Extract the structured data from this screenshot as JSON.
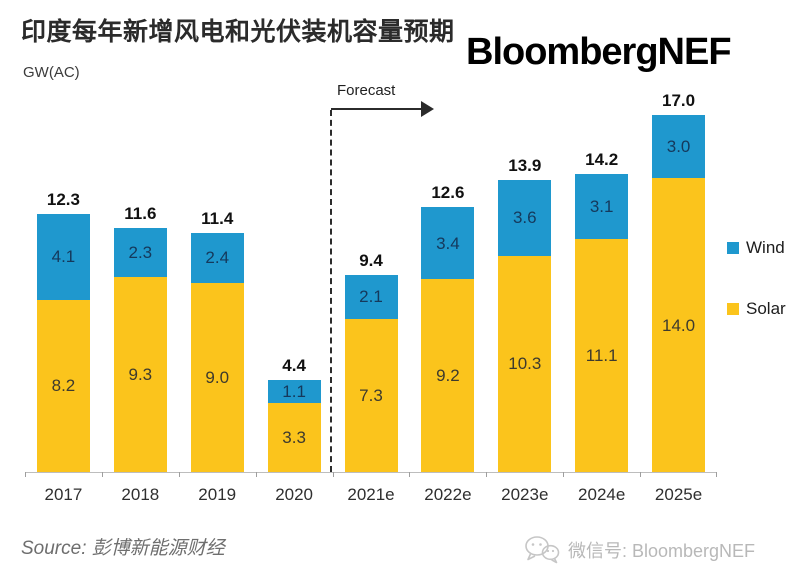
{
  "header": {
    "title": "印度每年新增风电和光伏装机容量预期",
    "unit_label": "GW(AC)",
    "brand": "BloombergNEF"
  },
  "chart_data": {
    "type": "bar",
    "stacked": true,
    "title": "印度每年新增风电和光伏装机容量预期",
    "ylabel": "GW(AC)",
    "categories": [
      "2017",
      "2018",
      "2019",
      "2020",
      "2021e",
      "2022e",
      "2023e",
      "2024e",
      "2025e"
    ],
    "series": [
      {
        "name": "Solar",
        "color": "#FBC41C",
        "values": [
          8.2,
          9.3,
          9.0,
          3.3,
          7.3,
          9.2,
          10.3,
          11.1,
          14.0
        ]
      },
      {
        "name": "Wind",
        "color": "#1F98CE",
        "values": [
          4.1,
          2.3,
          2.4,
          1.1,
          2.1,
          3.4,
          3.6,
          3.1,
          3.0
        ]
      }
    ],
    "totals": [
      12.3,
      11.6,
      11.4,
      4.4,
      9.4,
      12.6,
      13.9,
      14.2,
      17.0
    ],
    "ylim": [
      0,
      17.7
    ],
    "grid": false,
    "legend_position": "right",
    "forecast": {
      "label": "Forecast",
      "starts_at_category": "2021e"
    }
  },
  "legend": {
    "wind_label": "Wind",
    "solar_label": "Solar"
  },
  "footer": {
    "source": "Source: 彭博新能源财经",
    "wechat": "微信号: BloombergNEF"
  }
}
